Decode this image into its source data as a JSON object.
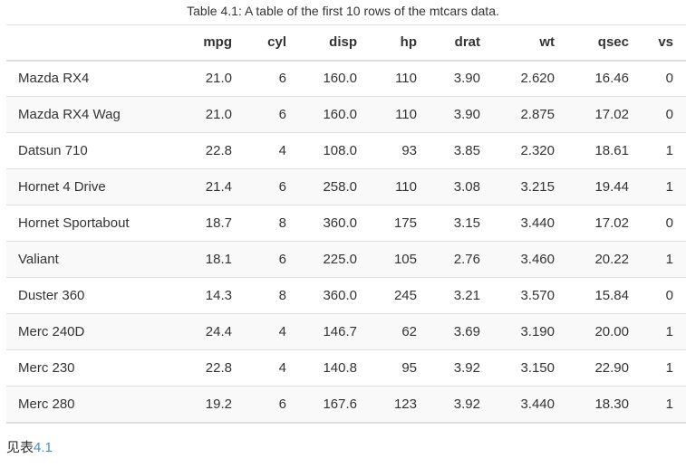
{
  "caption": "Table 4.1: A table of the first 10 rows of the mtcars data.",
  "table": {
    "headers": [
      "",
      "mpg",
      "cyl",
      "disp",
      "hp",
      "drat",
      "wt",
      "qsec",
      "vs"
    ],
    "rows": [
      [
        "Mazda RX4",
        "21.0",
        "6",
        "160.0",
        "110",
        "3.90",
        "2.620",
        "16.46",
        "0"
      ],
      [
        "Mazda RX4 Wag",
        "21.0",
        "6",
        "160.0",
        "110",
        "3.90",
        "2.875",
        "17.02",
        "0"
      ],
      [
        "Datsun 710",
        "22.8",
        "4",
        "108.0",
        "93",
        "3.85",
        "2.320",
        "18.61",
        "1"
      ],
      [
        "Hornet 4 Drive",
        "21.4",
        "6",
        "258.0",
        "110",
        "3.08",
        "3.215",
        "19.44",
        "1"
      ],
      [
        "Hornet Sportabout",
        "18.7",
        "8",
        "360.0",
        "175",
        "3.15",
        "3.440",
        "17.02",
        "0"
      ],
      [
        "Valiant",
        "18.1",
        "6",
        "225.0",
        "105",
        "2.76",
        "3.460",
        "20.22",
        "1"
      ],
      [
        "Duster 360",
        "14.3",
        "8",
        "360.0",
        "245",
        "3.21",
        "3.570",
        "15.84",
        "0"
      ],
      [
        "Merc 240D",
        "24.4",
        "4",
        "146.7",
        "62",
        "3.69",
        "3.190",
        "20.00",
        "1"
      ],
      [
        "Merc 230",
        "22.8",
        "4",
        "140.8",
        "95",
        "3.92",
        "3.150",
        "22.90",
        "1"
      ],
      [
        "Merc 280",
        "19.2",
        "6",
        "167.6",
        "123",
        "3.92",
        "3.440",
        "18.30",
        "1"
      ]
    ]
  },
  "footer": {
    "text": "见表",
    "link": "4.1",
    "link_color": "#4a8dbf"
  }
}
